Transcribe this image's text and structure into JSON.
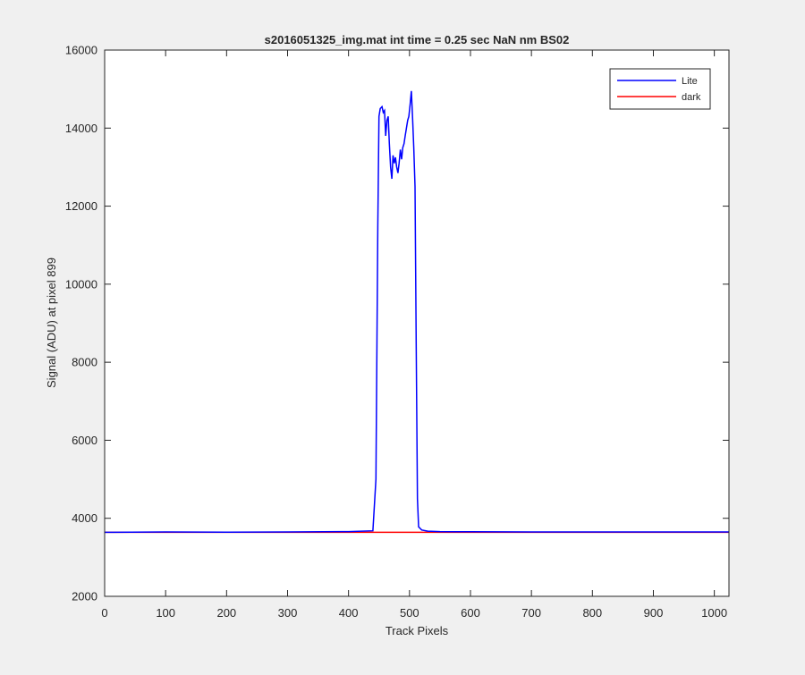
{
  "chart_data": {
    "type": "line",
    "title": "s2016051325_img.mat int time = 0.25 sec  NaN nm BS02",
    "xlabel": "Track Pixels",
    "ylabel": "Signal (ADU) at pixel 899",
    "xlim": [
      0,
      1024
    ],
    "ylim": [
      2000,
      16000
    ],
    "xticks": [
      0,
      100,
      200,
      300,
      400,
      500,
      600,
      700,
      800,
      900,
      1000
    ],
    "yticks": [
      2000,
      4000,
      6000,
      8000,
      10000,
      12000,
      14000,
      16000
    ],
    "grid": false,
    "legend_position": "top-right",
    "series": [
      {
        "name": "Lite",
        "color": "#0000ff",
        "x": [
          0,
          100,
          200,
          300,
          400,
          440,
          445,
          448,
          450,
          452,
          455,
          457,
          459,
          461,
          463,
          465,
          467,
          469,
          471,
          473,
          475,
          477,
          479,
          481,
          483,
          485,
          487,
          489,
          491,
          493,
          495,
          497,
          499,
          501,
          503,
          505,
          507,
          509,
          511,
          513,
          515,
          520,
          530,
          550,
          600,
          700,
          800,
          900,
          1024
        ],
        "y": [
          3640,
          3650,
          3645,
          3650,
          3660,
          3680,
          5000,
          11500,
          14300,
          14500,
          14550,
          14400,
          14450,
          13800,
          14200,
          14300,
          13600,
          13000,
          12700,
          13300,
          13100,
          13250,
          13000,
          12850,
          13100,
          13450,
          13200,
          13500,
          13600,
          13800,
          14000,
          14200,
          14300,
          14600,
          14950,
          14300,
          13500,
          12500,
          8500,
          4500,
          3780,
          3700,
          3670,
          3660,
          3655,
          3650,
          3650,
          3650,
          3650
        ]
      },
      {
        "name": "dark",
        "color": "#ff0000",
        "x": [
          0,
          1024
        ],
        "y": [
          3640,
          3640
        ]
      }
    ]
  }
}
